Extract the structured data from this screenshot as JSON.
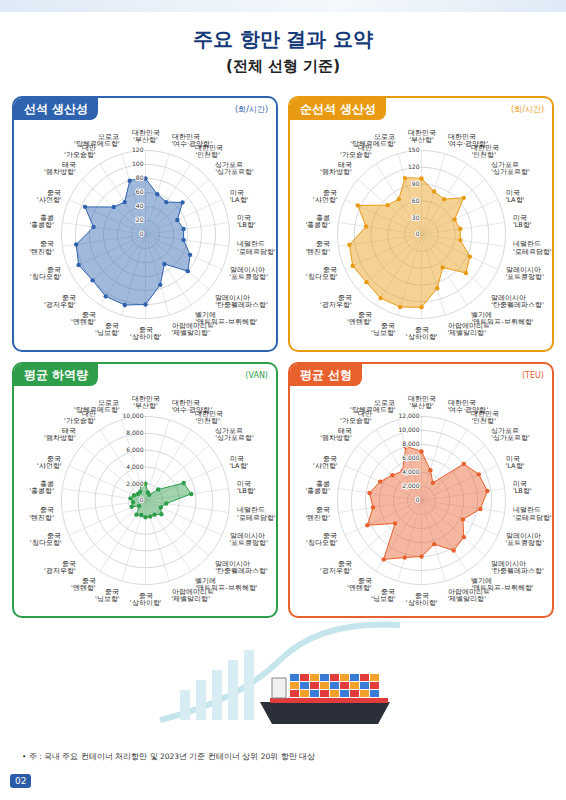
{
  "title": "주요 항만 결과 요약",
  "subtitle": "(전체 선형 기준)",
  "note": "• 주 : 국내 주요 컨테이너 처리항만 및 2023년 기준 컨테이너 상위 20위 항만 대상",
  "page": "02",
  "chart_data": [
    {
      "type": "radar",
      "title": "선석 생산성",
      "ylabel": "(회/시간)",
      "categories": [
        "대한민국 '부산항'",
        "대한민국 '여수·광양항'",
        "대한민국 '인천항'",
        "싱가포르 '싱가포르항'",
        "미국 'LA항'",
        "미국 'LB항'",
        "네덜란드 '로테르담항'",
        "말레이시아 '포트클랑항'",
        "말레이시아 '탄중펠레파스항'",
        "벨기에 '앤트워프-브뤼헤항'",
        "아랍에미리트 '제벨알리항'",
        "중국 '상하이항'",
        "중국 '닝보항'",
        "중국 '옌톈항'",
        "중국 '광저우항'",
        "중국 '칭다오항'",
        "중국 '톈진항'",
        "홍콩 '홍콩항'",
        "중국 '샤먼항'",
        "태국 '램차방항'",
        "대만 '가오슝항'",
        "모로코 '탕헤르메드항'"
      ],
      "values": [
        80,
        60,
        55,
        70,
        50,
        55,
        55,
        70,
        80,
        50,
        75,
        100,
        105,
        105,
        100,
        105,
        100,
        75,
        95,
        60,
        55,
        80
      ],
      "color": "#2f63b0",
      "ylim": [
        0,
        120
      ],
      "yticks": [
        0,
        20,
        40,
        60,
        80,
        100,
        120
      ],
      "grid": true,
      "marker": "circle"
    },
    {
      "type": "radar",
      "title": "순선석 생산성",
      "ylabel": "(회/시간)",
      "categories": [
        "대한민국 '부산항'",
        "대한민국 '여수·광양항'",
        "대한민국 '인천항'",
        "싱가포르 '싱가포르항'",
        "미국 'LA항'",
        "미국 'LB항'",
        "네덜란드 '로테르담항'",
        "말레이시아 '포트클랑항'",
        "말레이시아 '탄중펠레파스항'",
        "벨기에 '앤트워프-브뤼헤항'",
        "아랍에미리트 '제벨알리항'",
        "중국 '상하이항'",
        "중국 '닝보항'",
        "중국 '옌톈항'",
        "중국 '광저우항'",
        "중국 '칭다오항'",
        "중국 '톈진항'",
        "홍콩 '홍콩항'",
        "중국 '샤먼항'",
        "태국 '램차방항'",
        "대만 '가오슝항'",
        "모로코 '탕헤르메드항'"
      ],
      "values": [
        100,
        80,
        75,
        100,
        65,
        70,
        70,
        95,
        105,
        70,
        100,
        130,
        135,
        135,
        130,
        135,
        130,
        100,
        125,
        80,
        75,
        105
      ],
      "color": "#e89b12",
      "ylim": [
        0,
        150
      ],
      "yticks": [
        0,
        30,
        60,
        90,
        120,
        150
      ],
      "grid": true,
      "marker": "circle"
    },
    {
      "type": "radar",
      "title": "평균 하역량",
      "ylabel": "(VAN)",
      "categories": [
        "대한민국 '부산항'",
        "대한민국 '여수·광양항'",
        "대한민국 '인천항'",
        "싱가포르 '싱가포르항'",
        "미국 'LA항'",
        "미국 'LB항'",
        "네덜란드 '로테르담항'",
        "말레이시아 '포트클랑항'",
        "말레이시아 '탄중펠레파스항'",
        "벨기에 '앤트워프-브뤼헤항'",
        "아랍에미리트 '제벨알리항'",
        "중국 '상하이항'",
        "중국 '닝보항'",
        "중국 '옌톈항'",
        "중국 '광저우항'",
        "중국 '칭다오항'",
        "중국 '톈진항'",
        "홍콩 '홍콩항'",
        "중국 '샤먼항'",
        "태국 '램차방항'",
        "대만 '가오슝항'",
        "모로코 '탕헤르메드항'"
      ],
      "values": [
        2000,
        1000,
        800,
        2000,
        5000,
        5500,
        2500,
        2000,
        2500,
        2000,
        2000,
        2000,
        1800,
        2000,
        1000,
        1800,
        1500,
        1800,
        1500,
        1200,
        1200,
        2000
      ],
      "color": "#2e9e4a",
      "ylim": [
        0,
        10000
      ],
      "yticks": [
        0,
        {
          "value": 2000,
          "label": "2,000"
        },
        {
          "value": 4000,
          "label": "4,000"
        },
        {
          "value": 6000,
          "label": "6,000"
        },
        {
          "value": 8000,
          "label": "8,000"
        },
        {
          "value": 10000,
          "label": "10,000"
        }
      ],
      "grid": true,
      "marker": "circle"
    },
    {
      "type": "radar",
      "title": "평균 선형",
      "ylabel": "(TEU)",
      "categories": [
        "대한민국 '부산항'",
        "대한민국 '여수·광양항'",
        "대한민국 '인천항'",
        "싱가포르 '싱가포르항'",
        "미국 'LA항'",
        "미국 'LB항'",
        "네덜란드 '로테르담항'",
        "말레이시아 '포트클랑항'",
        "말레이시아 '탄중펠레파스항'",
        "벨기에 '앤트워프-브뤼헤항'",
        "아랍에미리트 '제벨알리항'",
        "중국 '상하이항'",
        "중국 '닝보항'",
        "중국 '옌톈항'",
        "중국 '광저우항'",
        "중국 '칭다오항'",
        "중국 '톈진항'",
        "홍콩 '홍콩항'",
        "중국 '샤먼항'",
        "태국 '램차방항'",
        "대만 '가오슝항'",
        "모로코 '탕헤르메드항'"
      ],
      "values": [
        7000,
        4500,
        3000,
        8000,
        9000,
        9500,
        8500,
        6500,
        8000,
        8500,
        6500,
        8000,
        8500,
        10000,
        5000,
        8500,
        7000,
        7500,
        6500,
        5500,
        5000,
        8000
      ],
      "color": "#e8602c",
      "ylim": [
        0,
        12000
      ],
      "yticks": [
        0,
        {
          "value": 2000,
          "label": "2,000"
        },
        {
          "value": 4000,
          "label": "4,000"
        },
        {
          "value": 6000,
          "label": "6,000"
        },
        {
          "value": 8000,
          "label": "8,000"
        },
        {
          "value": 10000,
          "label": "10,000"
        },
        {
          "value": 12000,
          "label": "12,000"
        }
      ],
      "grid": true,
      "marker": "circle"
    }
  ]
}
